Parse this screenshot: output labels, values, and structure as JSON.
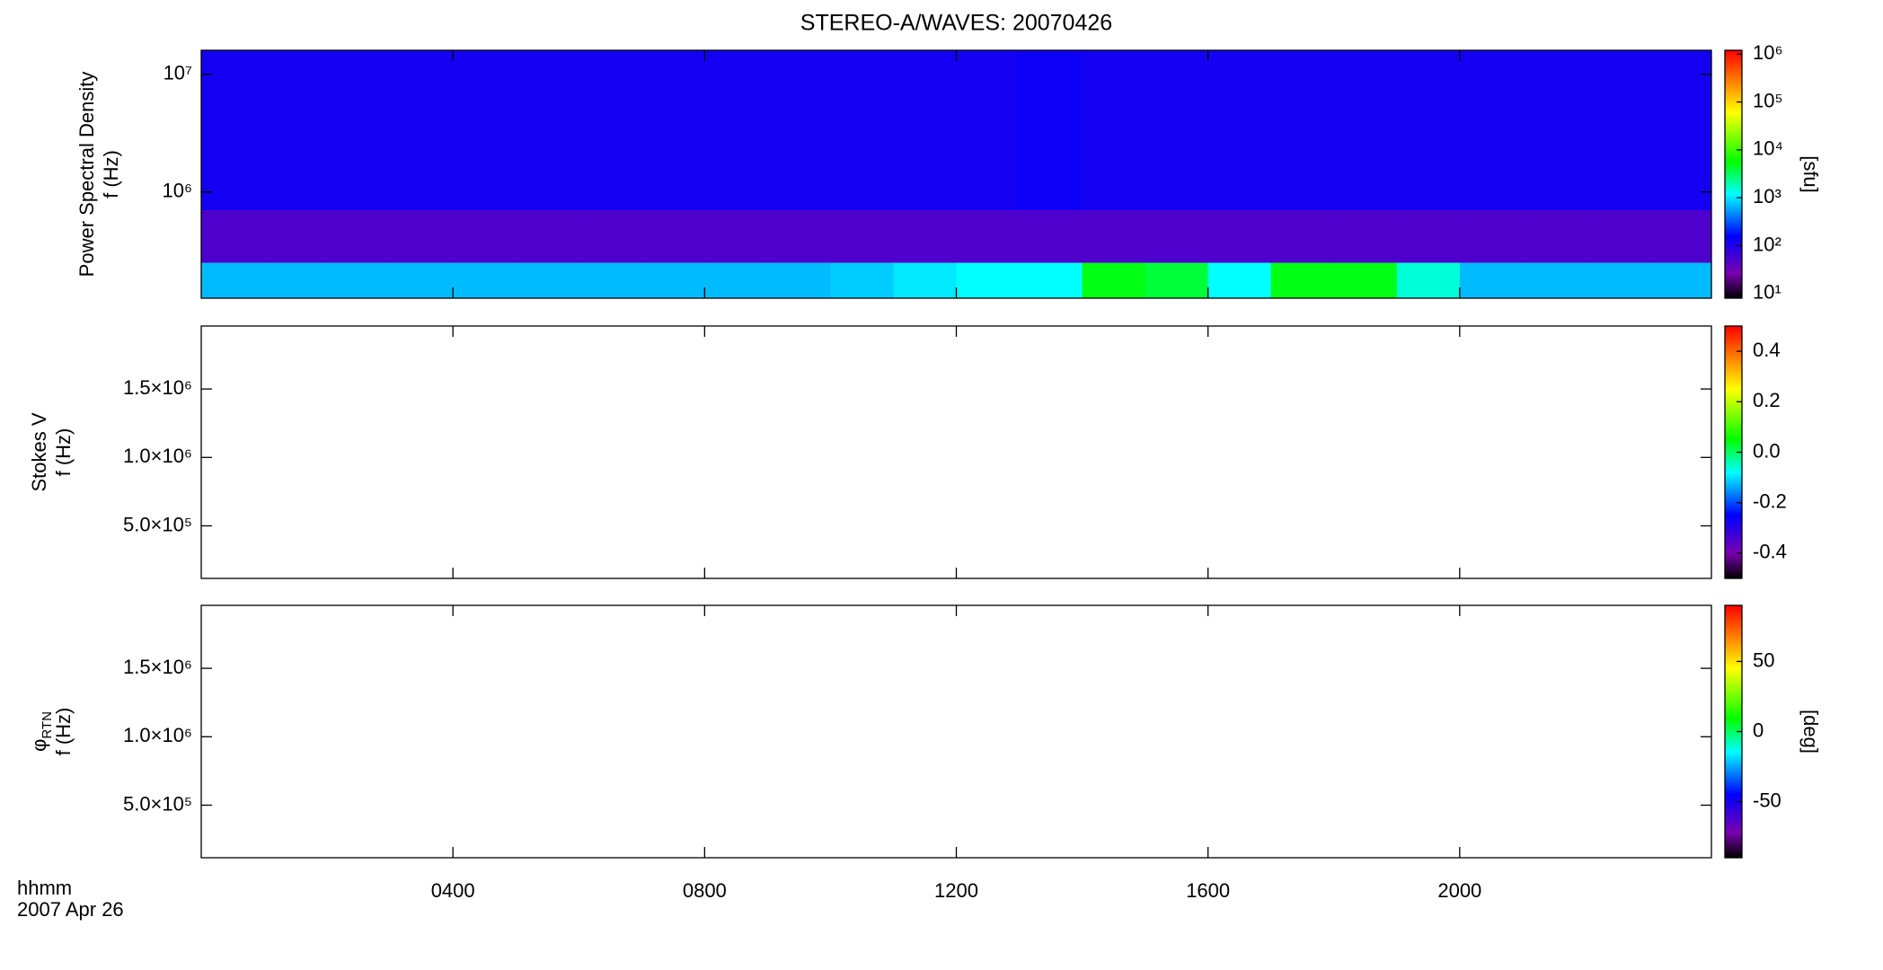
{
  "chart_data": [
    {
      "type": "heatmap",
      "title": "STEREO-A/WAVES: 20070426",
      "ylabel": [
        "Power Spectral Density",
        "f (Hz)"
      ],
      "ylog": true,
      "xlim": [
        0,
        24
      ],
      "xticks": [
        4,
        8,
        12,
        16,
        20
      ],
      "ylim": [
        125000,
        16000000
      ],
      "yticks": [
        {
          "value": 1000000,
          "label": "10⁶"
        },
        {
          "value": 10000000,
          "label": "10⁷"
        }
      ],
      "x_edges": [
        0,
        1,
        2,
        3,
        4,
        5,
        6,
        7,
        8,
        9,
        10,
        11,
        12,
        13,
        14,
        15,
        16,
        17,
        18,
        19,
        20,
        21,
        22,
        23,
        24
      ],
      "y_edges": [
        125000,
        250000,
        700000,
        16000000
      ],
      "z": [
        [
          700,
          700,
          700,
          700,
          700,
          700,
          700,
          700,
          700,
          700,
          800,
          1000,
          1200,
          1200,
          5000,
          4000,
          1200,
          5000,
          5000,
          1500,
          700,
          700,
          700,
          700
        ],
        [
          50,
          50,
          50,
          50,
          50,
          50,
          50,
          50,
          50,
          50,
          50,
          50,
          50,
          50,
          50,
          50,
          50,
          50,
          50,
          50,
          50,
          50,
          50,
          50
        ],
        [
          120,
          120,
          120,
          120,
          120,
          120,
          120,
          120,
          120,
          120,
          120,
          120,
          120,
          130,
          120,
          120,
          120,
          120,
          120,
          120,
          120,
          120,
          120,
          120
        ]
      ],
      "zlog": true,
      "zlim": [
        8,
        1200000
      ],
      "zticks": [
        {
          "value": 10,
          "label": "10¹"
        },
        {
          "value": 100,
          "label": "10²"
        },
        {
          "value": 1000,
          "label": "10³"
        },
        {
          "value": 10000,
          "label": "10⁴"
        },
        {
          "value": 100000,
          "label": "10⁵"
        },
        {
          "value": 1000000,
          "label": "10⁶"
        }
      ],
      "zlabel": "[sfu]",
      "colormap": [
        "#000000",
        "#7a00b0",
        "#0000ff",
        "#00ffff",
        "#00ff00",
        "#ffff00",
        "#ff0000"
      ],
      "colormap_positions": [
        0,
        0.1,
        0.25,
        0.42,
        0.55,
        0.75,
        1
      ]
    },
    {
      "type": "heatmap",
      "ylabel": [
        "Stokes V",
        "f (Hz)"
      ],
      "ylog": false,
      "xlim": [
        0,
        24
      ],
      "xticks": [
        4,
        8,
        12,
        16,
        20
      ],
      "ylim": [
        116000,
        1960000
      ],
      "yticks": [
        {
          "value": 500000,
          "label": "5.0×10⁵"
        },
        {
          "value": 1000000,
          "label": "1.0×10⁶"
        },
        {
          "value": 1500000,
          "label": "1.5×10⁶"
        }
      ],
      "zlog": false,
      "zlim": [
        -0.5,
        0.5
      ],
      "zticks": [
        -0.4,
        -0.2,
        {
          "value": 0,
          "label": "0.0"
        },
        0.2,
        0.4
      ],
      "colormap": [
        "#000000",
        "#7a00b0",
        "#0000ff",
        "#00ffff",
        "#00ff00",
        "#ffff00",
        "#ff0000"
      ],
      "colormap_positions": [
        0,
        0.1,
        0.25,
        0.42,
        0.55,
        0.75,
        1
      ]
    },
    {
      "type": "heatmap",
      "ylabel": [
        {
          "symbol": "φ",
          "subscript": "RTN"
        },
        "f (Hz)"
      ],
      "ylog": false,
      "xlim": [
        0,
        24
      ],
      "xticks": [
        {
          "value": 4,
          "label": "0400"
        },
        {
          "value": 8,
          "label": "0800"
        },
        {
          "value": 12,
          "label": "1200"
        },
        {
          "value": 16,
          "label": "1600"
        },
        {
          "value": 20,
          "label": "2000"
        }
      ],
      "xlabel": [
        "hhmm",
        "2007 Apr 26"
      ],
      "ylim": [
        116000,
        1960000
      ],
      "yticks": [
        {
          "value": 500000,
          "label": "5.0×10⁵"
        },
        {
          "value": 1000000,
          "label": "1.0×10⁶"
        },
        {
          "value": 1500000,
          "label": "1.5×10⁶"
        }
      ],
      "zlog": false,
      "zlim": [
        -90,
        90
      ],
      "zticks": [
        -50,
        0,
        50
      ],
      "zlabel": "[deg]",
      "colormap": [
        "#000000",
        "#7a00b0",
        "#0000ff",
        "#00ffff",
        "#00ff00",
        "#ffff00",
        "#ff0000"
      ],
      "colormap_positions": [
        0,
        0.1,
        0.25,
        0.42,
        0.55,
        0.75,
        1
      ]
    }
  ]
}
